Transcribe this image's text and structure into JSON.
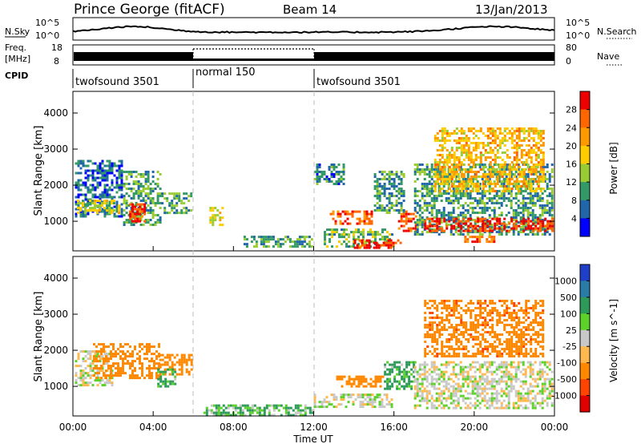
{
  "header": {
    "station": "Prince George (fitACF)",
    "beam": "Beam 14",
    "date": "13/Jan/2013"
  },
  "noise_panel": {
    "left_label": "N.Sky",
    "right_label": "N.Search",
    "left_ticks": [
      "10^5",
      "10^0"
    ],
    "right_ticks": [
      "10^5",
      "10^0"
    ]
  },
  "freq_panel": {
    "left_label_line1": "Freq.",
    "left_label_line2": "[MHz]",
    "left_ticks": [
      "18",
      "8"
    ],
    "right_ticks": [
      "80",
      "0"
    ],
    "right_label": "Nave"
  },
  "cpid_panel": {
    "label": "CPID",
    "segments": [
      {
        "label": "twofsound 3501",
        "start_hour": 0,
        "end_hour": 6
      },
      {
        "label": "normal 150",
        "start_hour": 6,
        "end_hour": 12
      },
      {
        "label": "twofsound 3501",
        "start_hour": 12,
        "end_hour": 24
      }
    ]
  },
  "power_colorbar": {
    "title": "Power [dB]",
    "ticks": [
      "28",
      "24",
      "20",
      "16",
      "12",
      "8",
      "4"
    ],
    "colors": [
      "#ee0000",
      "#ff6600",
      "#ff9900",
      "#ffcc00",
      "#99cc33",
      "#339966",
      "#2266aa",
      "#0000ff"
    ]
  },
  "velocity_colorbar": {
    "title": "Velocity [m s^-1]",
    "ticks": [
      "1000",
      "500",
      "100",
      "25",
      "-25",
      "-100",
      "-500",
      "-1000"
    ],
    "colors": [
      "#1f3fc8",
      "#2a7ca8",
      "#2e9a5a",
      "#5bd12a",
      "#c8c8c8",
      "#ffb84d",
      "#ff8800",
      "#ff4400",
      "#e00000"
    ]
  },
  "chart_data": {
    "type": "heatmap",
    "xlabel": "Time UT",
    "ylabel": "Slant Range [km]",
    "x_ticks": [
      "00:00",
      "04:00",
      "08:00",
      "12:00",
      "16:00",
      "20:00",
      "00:00"
    ],
    "x_hours": [
      0,
      4,
      8,
      12,
      16,
      20,
      24
    ],
    "xlim_hours": [
      0,
      24
    ],
    "y_ticks": [
      1000,
      2000,
      3000,
      4000
    ],
    "ylim_km": [
      180,
      4600
    ],
    "panels": [
      {
        "name": "Power [dB]",
        "scale": [
          0,
          30
        ],
        "regions": [
          {
            "t0": 0.1,
            "t1": 2.5,
            "r0": 1100,
            "r1": 2700,
            "value": 5
          },
          {
            "t0": 0.2,
            "t1": 2.3,
            "r0": 1200,
            "r1": 1600,
            "value": 14
          },
          {
            "t0": 2.5,
            "t1": 4.4,
            "r0": 900,
            "r1": 2400,
            "value": 9
          },
          {
            "t0": 2.8,
            "t1": 3.6,
            "r0": 1000,
            "r1": 1500,
            "value": 26
          },
          {
            "t0": 4.4,
            "t1": 6.0,
            "r0": 1200,
            "r1": 1800,
            "value": 9
          },
          {
            "t0": 6.8,
            "t1": 7.5,
            "r0": 900,
            "r1": 1400,
            "value": 15
          },
          {
            "t0": 8.5,
            "t1": 12.0,
            "r0": 250,
            "r1": 600,
            "value": 8
          },
          {
            "t0": 12.0,
            "t1": 13.6,
            "r0": 2000,
            "r1": 2600,
            "value": 6
          },
          {
            "t0": 12.5,
            "t1": 16.0,
            "r0": 250,
            "r1": 800,
            "value": 10
          },
          {
            "t0": 14.0,
            "t1": 16.4,
            "r0": 250,
            "r1": 500,
            "value": 27
          },
          {
            "t0": 12.8,
            "t1": 15.0,
            "r0": 900,
            "r1": 1300,
            "value": 24
          },
          {
            "t0": 15.0,
            "t1": 16.5,
            "r0": 1200,
            "r1": 2400,
            "value": 8
          },
          {
            "t0": 16.2,
            "t1": 17.2,
            "r0": 700,
            "r1": 1300,
            "value": 25
          },
          {
            "t0": 17.0,
            "t1": 24.0,
            "r0": 600,
            "r1": 2600,
            "value": 8
          },
          {
            "t0": 17.5,
            "t1": 24.0,
            "r0": 700,
            "r1": 1100,
            "value": 27
          },
          {
            "t0": 19.5,
            "t1": 21.0,
            "r0": 400,
            "r1": 600,
            "value": 24
          },
          {
            "t0": 18.0,
            "t1": 23.5,
            "r0": 1800,
            "r1": 3600,
            "value": 18
          }
        ]
      },
      {
        "name": "Velocity [m s^-1]",
        "scale": [
          -1000,
          1000
        ],
        "regions": [
          {
            "t0": 0.1,
            "t1": 2.0,
            "r0": 1000,
            "r1": 2000,
            "value": 0
          },
          {
            "t0": 1.0,
            "t1": 4.3,
            "r0": 1200,
            "r1": 2200,
            "value": -300
          },
          {
            "t0": 4.3,
            "t1": 6.0,
            "r0": 1300,
            "r1": 1900,
            "value": -200
          },
          {
            "t0": 4.2,
            "t1": 5.2,
            "r0": 1000,
            "r1": 1500,
            "value": 80
          },
          {
            "t0": 6.5,
            "t1": 12.0,
            "r0": 200,
            "r1": 500,
            "value": 60
          },
          {
            "t0": 12.0,
            "t1": 16.0,
            "r0": 400,
            "r1": 800,
            "value": 0
          },
          {
            "t0": 13.0,
            "t1": 15.5,
            "r0": 1000,
            "r1": 1300,
            "value": -300
          },
          {
            "t0": 15.5,
            "t1": 17.0,
            "r0": 900,
            "r1": 1700,
            "value": 80
          },
          {
            "t0": 17.0,
            "t1": 24.0,
            "r0": 400,
            "r1": 1700,
            "value": 0
          },
          {
            "t0": 17.5,
            "t1": 23.5,
            "r0": 1800,
            "r1": 3400,
            "value": -450
          }
        ]
      }
    ]
  }
}
